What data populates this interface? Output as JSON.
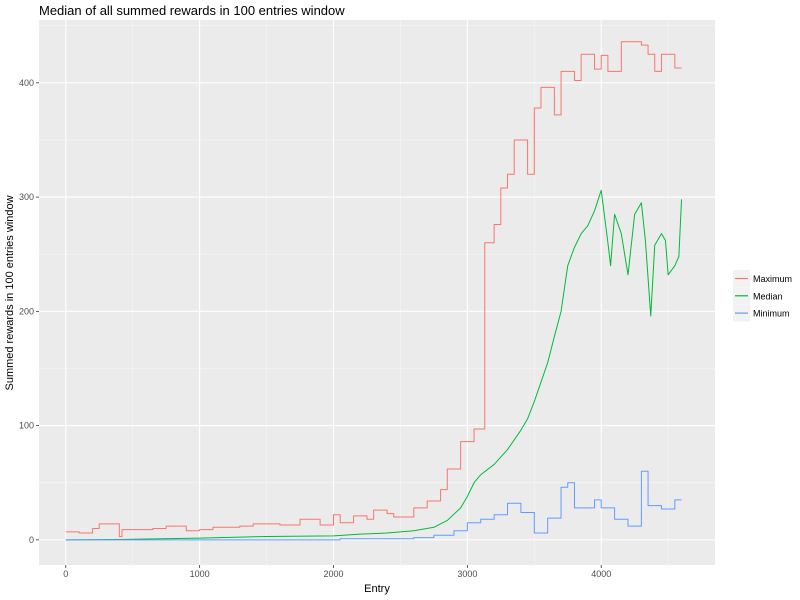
{
  "chart_data": {
    "type": "line",
    "title": "Median of all summed rewards in 100 entries window",
    "xlabel": "Entry",
    "ylabel": "Summed rewards in 100 entries window",
    "xlim": [
      -200,
      4850
    ],
    "ylim": [
      -22,
      455
    ],
    "x_ticks": [
      0,
      1000,
      2000,
      3000,
      4000
    ],
    "y_ticks": [
      0,
      100,
      200,
      300,
      400
    ],
    "grid": true,
    "legend_position": "right",
    "colors": {
      "panel": "#ebebeb",
      "grid_major": "#ffffff",
      "grid_minor": "#f5f5f5"
    },
    "series": [
      {
        "name": "Maximum",
        "color": "#f8766d",
        "step": true,
        "points": [
          [
            0,
            7
          ],
          [
            100,
            6
          ],
          [
            200,
            10
          ],
          [
            250,
            14
          ],
          [
            400,
            3
          ],
          [
            420,
            9
          ],
          [
            650,
            10
          ],
          [
            750,
            12
          ],
          [
            900,
            8
          ],
          [
            1000,
            9
          ],
          [
            1100,
            11
          ],
          [
            1300,
            12
          ],
          [
            1400,
            14
          ],
          [
            1600,
            13
          ],
          [
            1750,
            18
          ],
          [
            1900,
            13
          ],
          [
            2000,
            22
          ],
          [
            2050,
            15
          ],
          [
            2150,
            21
          ],
          [
            2250,
            18
          ],
          [
            2300,
            26
          ],
          [
            2400,
            23
          ],
          [
            2450,
            20
          ],
          [
            2600,
            28
          ],
          [
            2700,
            34
          ],
          [
            2800,
            44
          ],
          [
            2850,
            62
          ],
          [
            2950,
            86
          ],
          [
            3050,
            97
          ],
          [
            3130,
            260
          ],
          [
            3200,
            276
          ],
          [
            3250,
            308
          ],
          [
            3300,
            320
          ],
          [
            3350,
            350
          ],
          [
            3450,
            320
          ],
          [
            3500,
            378
          ],
          [
            3550,
            396
          ],
          [
            3650,
            372
          ],
          [
            3700,
            410
          ],
          [
            3800,
            402
          ],
          [
            3850,
            425
          ],
          [
            3950,
            412
          ],
          [
            4000,
            424
          ],
          [
            4050,
            410
          ],
          [
            4150,
            436
          ],
          [
            4300,
            433
          ],
          [
            4350,
            425
          ],
          [
            4400,
            410
          ],
          [
            4450,
            425
          ],
          [
            4550,
            413
          ],
          [
            4600,
            413
          ]
        ]
      },
      {
        "name": "Median",
        "color": "#00ba38",
        "step": false,
        "points": [
          [
            0,
            0
          ],
          [
            500,
            0.5
          ],
          [
            1000,
            1.5
          ],
          [
            1500,
            3
          ],
          [
            2000,
            3.5
          ],
          [
            2200,
            5
          ],
          [
            2400,
            6
          ],
          [
            2600,
            8
          ],
          [
            2750,
            11
          ],
          [
            2850,
            17
          ],
          [
            2950,
            28
          ],
          [
            3000,
            38
          ],
          [
            3050,
            50
          ],
          [
            3100,
            57
          ],
          [
            3200,
            66
          ],
          [
            3300,
            79
          ],
          [
            3400,
            96
          ],
          [
            3450,
            106
          ],
          [
            3500,
            121
          ],
          [
            3550,
            138
          ],
          [
            3600,
            155
          ],
          [
            3650,
            178
          ],
          [
            3700,
            200
          ],
          [
            3750,
            240
          ],
          [
            3800,
            256
          ],
          [
            3850,
            268
          ],
          [
            3900,
            275
          ],
          [
            3950,
            288
          ],
          [
            4000,
            306
          ],
          [
            4050,
            260
          ],
          [
            4070,
            240
          ],
          [
            4100,
            285
          ],
          [
            4150,
            268
          ],
          [
            4200,
            232
          ],
          [
            4250,
            285
          ],
          [
            4300,
            295
          ],
          [
            4330,
            262
          ],
          [
            4370,
            196
          ],
          [
            4400,
            258
          ],
          [
            4450,
            268
          ],
          [
            4480,
            262
          ],
          [
            4500,
            232
          ],
          [
            4550,
            240
          ],
          [
            4580,
            248
          ],
          [
            4600,
            298
          ]
        ]
      },
      {
        "name": "Minimum",
        "color": "#619cff",
        "step": true,
        "points": [
          [
            0,
            0
          ],
          [
            2050,
            1
          ],
          [
            2600,
            2
          ],
          [
            2750,
            4
          ],
          [
            2900,
            8
          ],
          [
            3000,
            15
          ],
          [
            3100,
            18
          ],
          [
            3200,
            22
          ],
          [
            3300,
            32
          ],
          [
            3400,
            24
          ],
          [
            3500,
            6
          ],
          [
            3600,
            19
          ],
          [
            3700,
            46
          ],
          [
            3750,
            50
          ],
          [
            3800,
            28
          ],
          [
            3950,
            35
          ],
          [
            4000,
            28
          ],
          [
            4100,
            18
          ],
          [
            4200,
            12
          ],
          [
            4300,
            60
          ],
          [
            4350,
            30
          ],
          [
            4450,
            27
          ],
          [
            4550,
            35
          ],
          [
            4600,
            35
          ]
        ]
      }
    ]
  }
}
